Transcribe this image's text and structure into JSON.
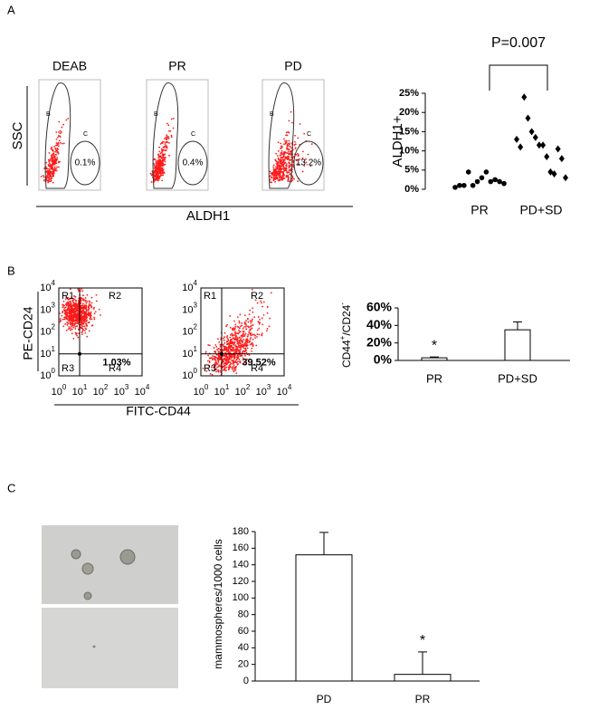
{
  "panel_labels": [
    "A",
    "B",
    "C"
  ],
  "flow_aldh": {
    "plots": [
      {
        "title": "DEAB",
        "percent": "0.1%"
      },
      {
        "title": "PR",
        "percent": "0.4%"
      },
      {
        "title": "PD",
        "percent": "13.2%"
      }
    ],
    "gates": [
      "B",
      "C"
    ],
    "y_label": "SSC",
    "x_label": "ALDH1"
  },
  "flow_cd": {
    "plots": [
      {
        "percent": "1.03%"
      },
      {
        "percent": "39.52%"
      }
    ],
    "regions": [
      "R1",
      "R2",
      "R3",
      "R4"
    ],
    "tick_base": "10",
    "tick_exponents": [
      "0",
      "1",
      "2",
      "3",
      "4"
    ],
    "y_label": "PE-CD24",
    "x_label": "FITC-CD44"
  },
  "chart_data": [
    {
      "type": "strip",
      "y_label": "ALDH1+",
      "annotation": "P=0.007",
      "categories": [
        "PR",
        "PD+SD"
      ],
      "groups": [
        [
          0.5,
          1,
          1,
          4.5,
          1,
          2,
          3,
          4.5,
          2,
          2.5,
          2,
          1.5
        ],
        [
          13,
          11,
          24,
          18.5,
          15,
          13.5,
          11.5,
          11.5,
          8.5,
          4.5,
          4,
          10.5,
          8,
          3
        ]
      ],
      "markers": [
        "circle",
        "diamond"
      ],
      "color": "#000000",
      "ylim": [
        0,
        25
      ],
      "yticks": [
        {
          "value": 0,
          "label": "0%"
        },
        {
          "value": 5,
          "label": "5%"
        },
        {
          "value": 10,
          "label": "10%"
        },
        {
          "value": 15,
          "label": "15%"
        },
        {
          "value": 20,
          "label": "20%"
        },
        {
          "value": 25,
          "label": "25%"
        }
      ]
    },
    {
      "type": "bar",
      "y_label_parts": [
        "CD44",
        "+",
        "/CD24",
        "-"
      ],
      "categories": [
        "PR",
        "PD+SD"
      ],
      "values": [
        3,
        35
      ],
      "errors": [
        1,
        9
      ],
      "marks_above": [
        "*",
        null
      ],
      "color": "#ffffff",
      "ylim": [
        0,
        60
      ],
      "yticks": [
        {
          "value": 0,
          "label": "0%"
        },
        {
          "value": 20,
          "label": "20%"
        },
        {
          "value": 40,
          "label": "40%"
        },
        {
          "value": 60,
          "label": "60%"
        }
      ]
    },
    {
      "type": "bar",
      "y_label": "mammospheres/1000 cells",
      "categories": [
        "PD",
        "PR"
      ],
      "values": [
        152,
        8
      ],
      "errors": [
        27,
        27
      ],
      "marks_above": [
        null,
        "*"
      ],
      "color": "#ffffff",
      "ylim": [
        0,
        180
      ],
      "yticks": [
        0,
        20,
        40,
        60,
        80,
        100,
        120,
        140,
        160,
        180
      ]
    }
  ]
}
